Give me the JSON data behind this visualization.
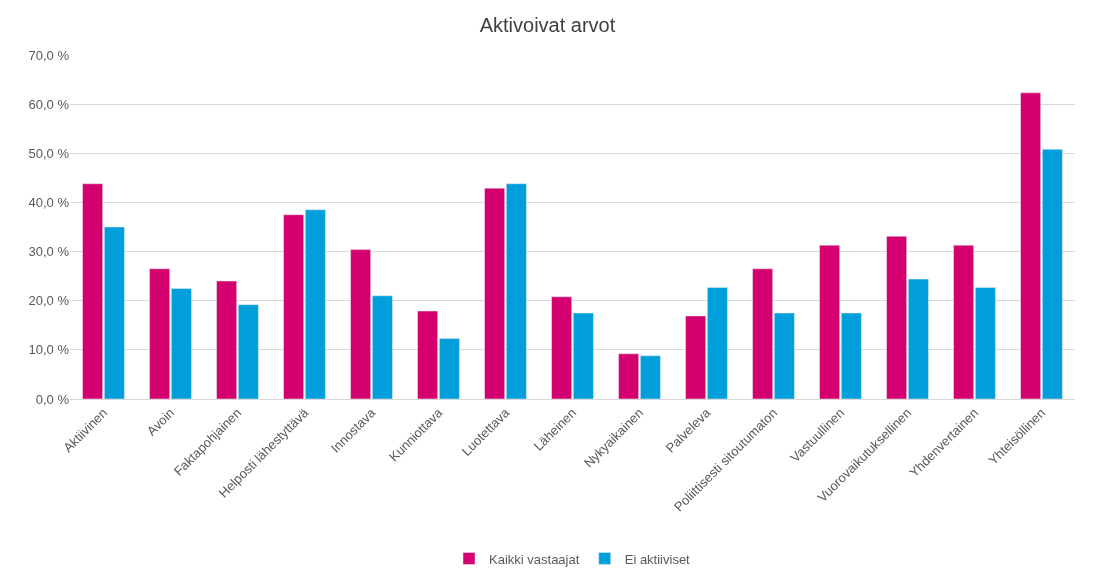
{
  "chart_data": {
    "type": "bar",
    "title": "Aktivoivat arvot",
    "categories": [
      "Aktiivinen",
      "Avoin",
      "Faktapohjainen",
      "Helposti lähestyttävä",
      "Innostava",
      "Kunniottava",
      "Luotettava",
      "Läheinen",
      "Nykyaikainen",
      "Palveleva",
      "Poliittisesti sitoutumaton",
      "Vastuullinen",
      "Vuorovaikutuksellinen",
      "Yhdenvertainen",
      "Yhteisöllinen"
    ],
    "series": [
      {
        "name": "Kaikki vastaajat",
        "color": "#d4006f",
        "values": [
          43.8,
          26.5,
          24.0,
          37.5,
          30.4,
          17.9,
          42.9,
          20.8,
          9.2,
          16.9,
          26.5,
          31.3,
          33.1,
          31.3,
          62.3
        ]
      },
      {
        "name": "Ei aktiiviset",
        "color": "#009fdb",
        "values": [
          35.0,
          22.5,
          19.2,
          38.5,
          21.0,
          12.3,
          43.8,
          17.5,
          8.8,
          22.7,
          17.5,
          17.5,
          24.4,
          22.7,
          50.8
        ]
      }
    ],
    "ylim": [
      0,
      70
    ],
    "yticks": [
      {
        "value": 0,
        "label": "0,0 %"
      },
      {
        "value": 10,
        "label": "10,0 %"
      },
      {
        "value": 20,
        "label": "20,0 %"
      },
      {
        "value": 30,
        "label": "30,0 %"
      },
      {
        "value": 40,
        "label": "40,0 %"
      },
      {
        "value": 50,
        "label": "50,0 %"
      },
      {
        "value": 60,
        "label": "60,0 %"
      },
      {
        "value": 70,
        "label": "70,0 %"
      }
    ],
    "grid": "y",
    "legend": "bottom"
  }
}
